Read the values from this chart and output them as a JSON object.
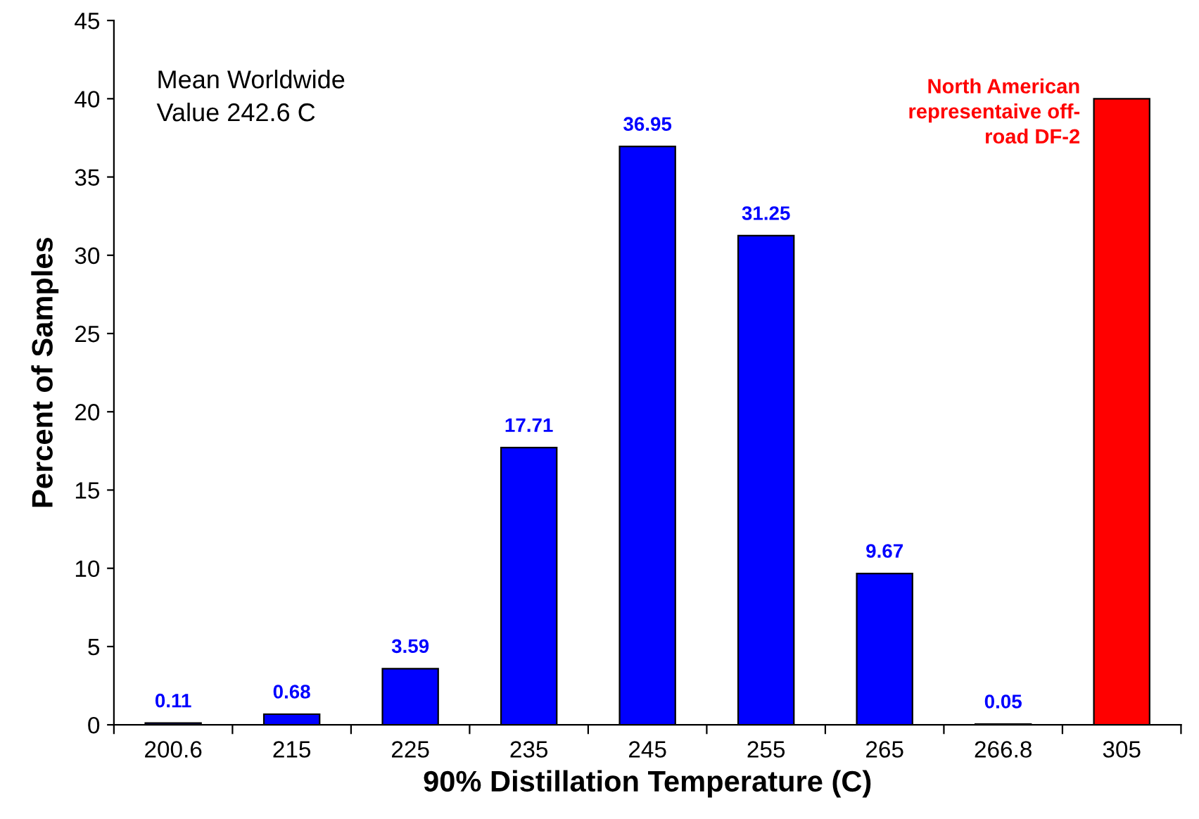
{
  "chart_data": {
    "type": "bar",
    "xlabel": "90% Distillation Temperature (C)",
    "ylabel": "Percent of Samples",
    "categories": [
      "200.6",
      "215",
      "225",
      "235",
      "245",
      "255",
      "265",
      "266.8",
      "305"
    ],
    "values": [
      0.11,
      0.68,
      3.59,
      17.71,
      36.95,
      31.25,
      9.67,
      0.05,
      40
    ],
    "colors": [
      "#0000ff",
      "#0000ff",
      "#0000ff",
      "#0000ff",
      "#0000ff",
      "#0000ff",
      "#0000ff",
      "#0000ff",
      "#ff0000"
    ],
    "value_labels": [
      "0.11",
      "0.68",
      "3.59",
      "17.71",
      "36.95",
      "31.25",
      "9.67",
      "0.05",
      null
    ],
    "ylim": [
      0,
      45
    ],
    "yticks": [
      0,
      5,
      10,
      15,
      20,
      25,
      30,
      35,
      40,
      45
    ],
    "grid": false,
    "annotations": [
      "Mean Worldwide\nValue 242.6 C",
      {
        "text": "North American\nrepresentaive off-\nroad DF-2",
        "x": "305",
        "y": 40
      }
    ]
  }
}
